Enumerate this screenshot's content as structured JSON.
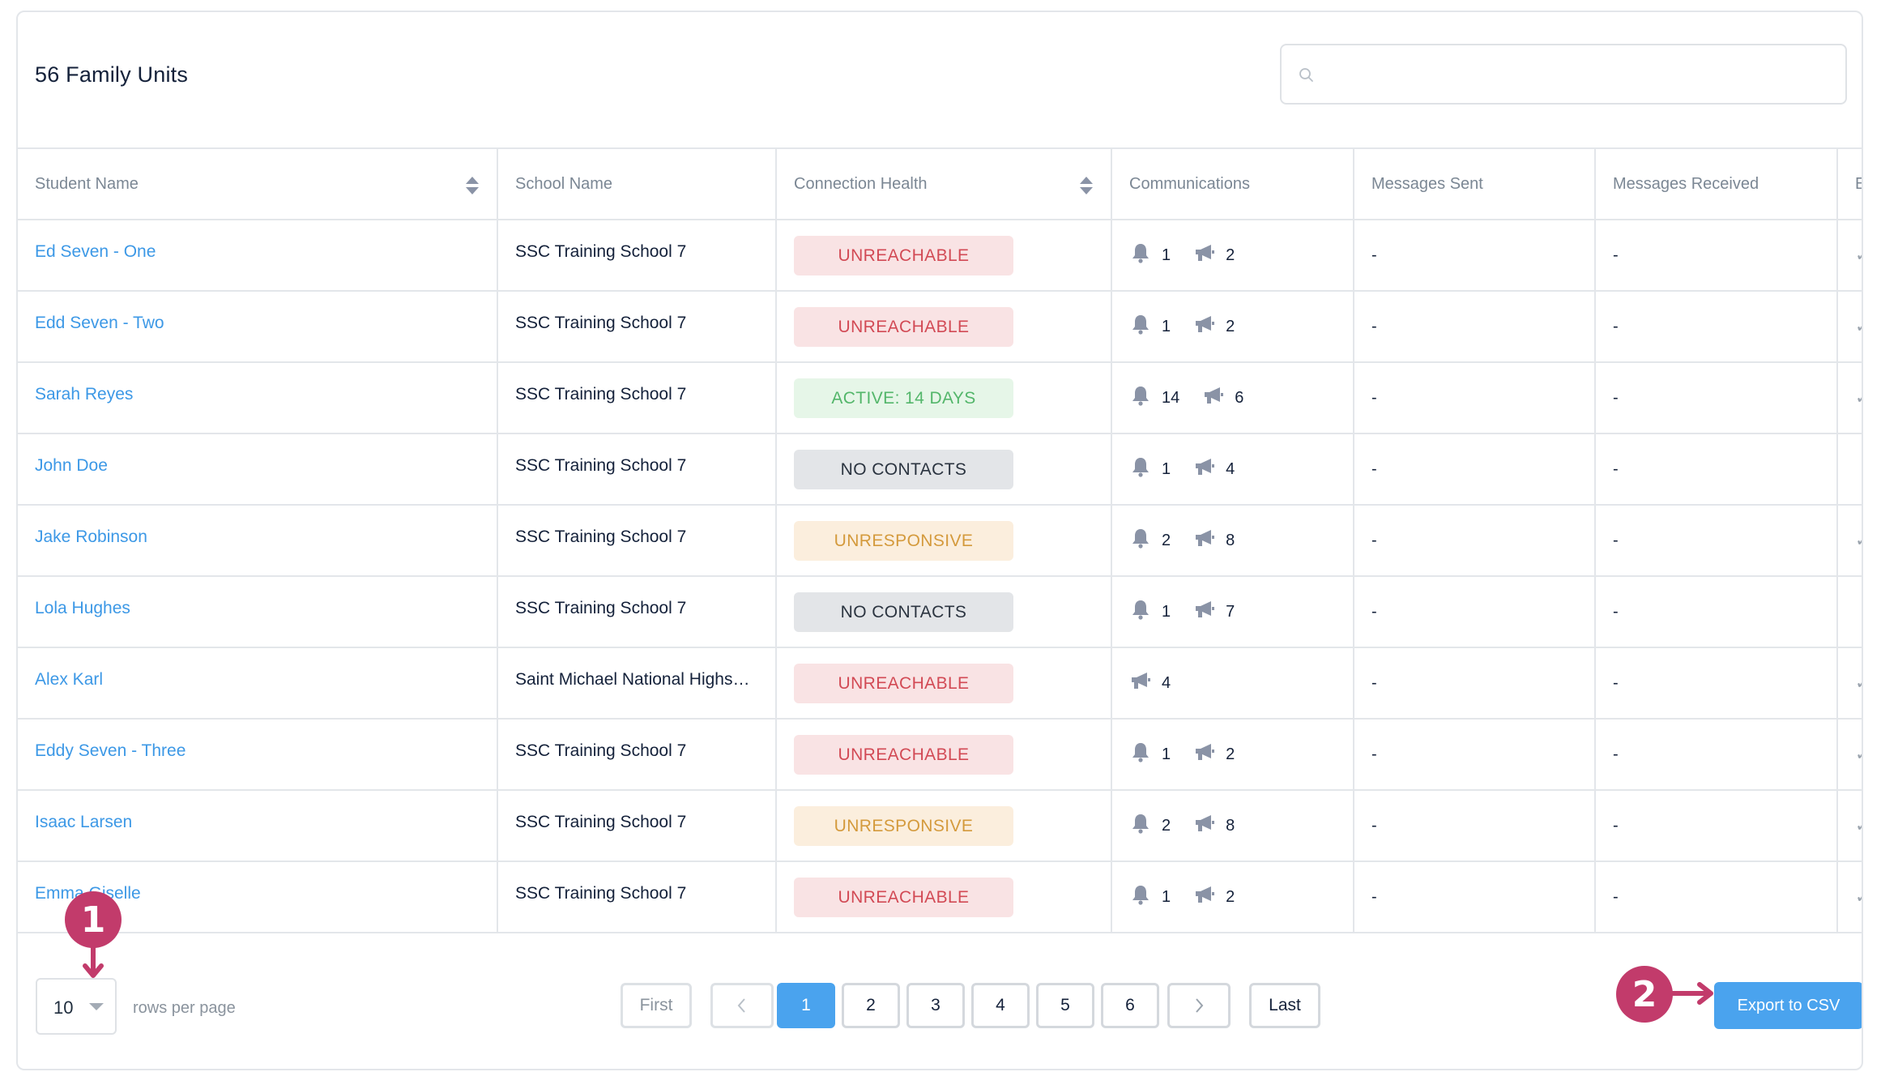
{
  "header": {
    "title": "56 Family Units",
    "search_placeholder": ""
  },
  "columns": [
    {
      "label": "Student Name",
      "sortable": true
    },
    {
      "label": "School Name",
      "sortable": false
    },
    {
      "label": "Connection Health",
      "sortable": true
    },
    {
      "label": "Communications",
      "sortable": false
    },
    {
      "label": "Messages Sent",
      "sortable": false
    },
    {
      "label": "Messages Received",
      "sortable": false
    },
    {
      "label": "Em",
      "sortable": false
    }
  ],
  "rows": [
    {
      "name": "Ed Seven - One",
      "school": "SSC Training School 7",
      "health": "UNREACHABLE",
      "bell": "1",
      "megaphone": "2",
      "sent": "-",
      "received": "-",
      "check": "✓"
    },
    {
      "name": "Edd Seven - Two",
      "school": "SSC Training School 7",
      "health": "UNREACHABLE",
      "bell": "1",
      "megaphone": "2",
      "sent": "-",
      "received": "-",
      "check": "✓"
    },
    {
      "name": "Sarah Reyes",
      "school": "SSC Training School 7",
      "health": "ACTIVE: 14 DAYS",
      "bell": "14",
      "megaphone": "6",
      "sent": "-",
      "received": "-",
      "check": "✓"
    },
    {
      "name": "John Doe",
      "school": "SSC Training School 7",
      "health": "NO CONTACTS",
      "bell": "1",
      "megaphone": "4",
      "sent": "-",
      "received": "-",
      "check": ""
    },
    {
      "name": "Jake Robinson",
      "school": "SSC Training School 7",
      "health": "UNRESPONSIVE",
      "bell": "2",
      "megaphone": "8",
      "sent": "-",
      "received": "-",
      "check": "✓"
    },
    {
      "name": "Lola Hughes",
      "school": "SSC Training School 7",
      "health": "NO CONTACTS",
      "bell": "1",
      "megaphone": "7",
      "sent": "-",
      "received": "-",
      "check": ""
    },
    {
      "name": "Alex Karl",
      "school": "Saint Michael National Highs…",
      "health": "UNREACHABLE",
      "bell": "",
      "megaphone": "4",
      "sent": "-",
      "received": "-",
      "check": "✓"
    },
    {
      "name": "Eddy Seven - Three",
      "school": "SSC Training School 7",
      "health": "UNREACHABLE",
      "bell": "1",
      "megaphone": "2",
      "sent": "-",
      "received": "-",
      "check": "✓"
    },
    {
      "name": "Isaac Larsen",
      "school": "SSC Training School 7",
      "health": "UNRESPONSIVE",
      "bell": "2",
      "megaphone": "8",
      "sent": "-",
      "received": "-",
      "check": "✓"
    },
    {
      "name": "Emma Giselle",
      "school": "SSC Training School 7",
      "health": "UNREACHABLE",
      "bell": "1",
      "megaphone": "2",
      "sent": "-",
      "received": "-",
      "check": "✓"
    }
  ],
  "health_styles": {
    "UNREACHABLE": {
      "bg": "#f9e3e4",
      "fg": "#d24a55"
    },
    "ACTIVE: 14 DAYS": {
      "bg": "#e6f6e8",
      "fg": "#53b66a"
    },
    "NO CONTACTS": {
      "bg": "#e3e5e8",
      "fg": "#2b3440"
    },
    "UNRESPONSIVE": {
      "bg": "#fbeedd",
      "fg": "#d49a3c"
    }
  },
  "footer": {
    "rows_per_page_value": "10",
    "rows_per_page_label": "rows per page",
    "first": "First",
    "prev_icon": "chevron-left-icon",
    "pages": [
      "1",
      "2",
      "3",
      "4",
      "5",
      "6"
    ],
    "current_page": "1",
    "next_icon": "chevron-right-icon",
    "last": "Last",
    "export": "Export to CSV"
  },
  "annotations": {
    "marker_1": "1",
    "marker_2": "2",
    "color": "#c23b6b"
  },
  "colors": {
    "link": "#3c98e6",
    "accent": "#4aa3ee",
    "icon_gray": "#8a93a6"
  }
}
